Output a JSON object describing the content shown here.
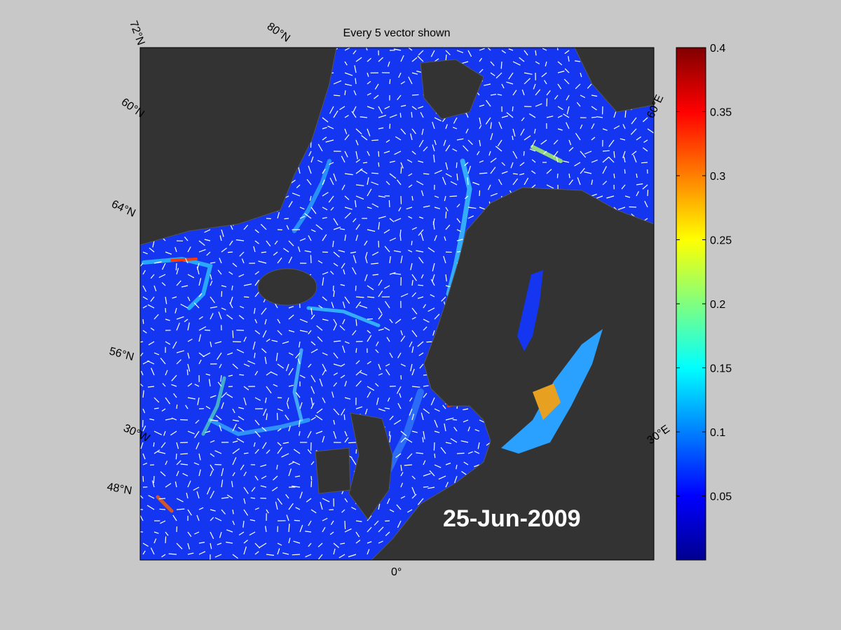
{
  "title": "Every 5 vector shown",
  "date_label": "25-Jun-2009",
  "graticule_labels": [
    "72°N",
    "80°N",
    "60°N",
    "64°N",
    "56°N",
    "30°W",
    "48°N",
    "0°",
    "60°E",
    "30°E"
  ],
  "colorbar": {
    "lim": [
      0,
      0.4
    ],
    "ticks": [
      0.05,
      0.1,
      0.15,
      0.2,
      0.25,
      0.3,
      0.35,
      0.4
    ]
  }
}
